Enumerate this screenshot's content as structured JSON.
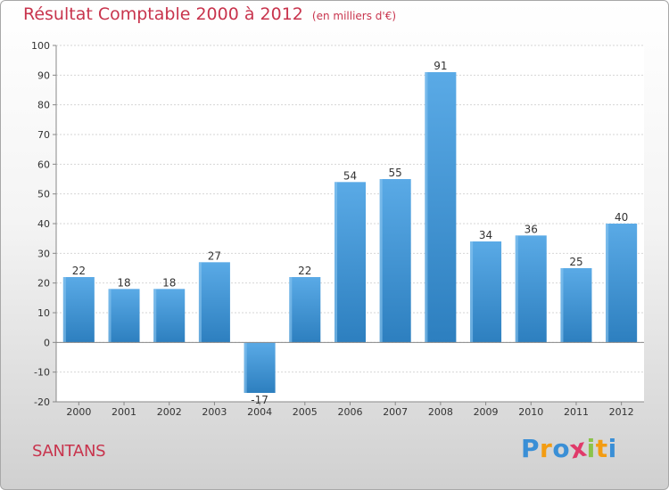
{
  "chart_data": {
    "type": "bar",
    "title": "Résultat Comptable 2000 à 2012",
    "subtitle": "(en milliers d'€)",
    "categories": [
      "2000",
      "2001",
      "2002",
      "2003",
      "2004",
      "2005",
      "2006",
      "2007",
      "2008",
      "2009",
      "2010",
      "2011",
      "2012"
    ],
    "values": [
      22,
      18,
      18,
      27,
      -17,
      22,
      54,
      55,
      91,
      34,
      36,
      25,
      40
    ],
    "ylim": [
      -20,
      100
    ],
    "yticks": [
      -20,
      -10,
      0,
      10,
      20,
      30,
      40,
      50,
      60,
      70,
      80,
      90,
      100
    ],
    "grid": true,
    "bar_color_top": "#5aaae6",
    "bar_color_bottom": "#2d7fbf",
    "xlabel": "",
    "ylabel": ""
  },
  "footer": {
    "town": "SANTANS",
    "logo_letters": [
      "P",
      "r",
      "o",
      "x",
      "i",
      "t",
      "i"
    ],
    "logo_colors": [
      "#3a8fd6",
      "#f39c12",
      "#3a8fd6",
      "#e03a6a",
      "#8bc34a",
      "#f39c12",
      "#3a8fd6"
    ]
  }
}
